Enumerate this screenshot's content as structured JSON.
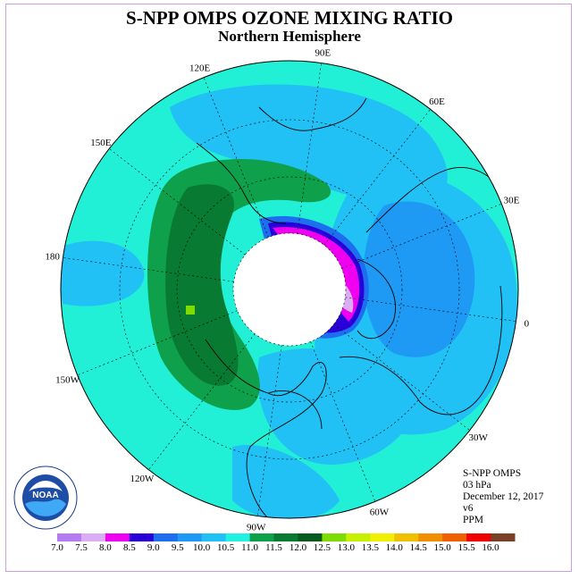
{
  "title": "S-NPP OMPS OZONE MIXING RATIO",
  "subtitle": "Northern Hemisphere",
  "longitude_labels": [
    {
      "text": "90E",
      "lon": 90
    },
    {
      "text": "60E",
      "lon": 60
    },
    {
      "text": "30E",
      "lon": 30
    },
    {
      "text": "0",
      "lon": 0
    },
    {
      "text": "30W",
      "lon": -30
    },
    {
      "text": "60W",
      "lon": -60
    },
    {
      "text": "90W",
      "lon": -90
    },
    {
      "text": "120W",
      "lon": -120
    },
    {
      "text": "150W",
      "lon": -150
    },
    {
      "text": "180",
      "lon": 180
    },
    {
      "text": "150E",
      "lon": 150
    },
    {
      "text": "120E",
      "lon": 120
    }
  ],
  "info": {
    "instrument": "S-NPP OMPS",
    "level": "03 hPa",
    "date": "December 12, 2017",
    "version": "v6",
    "units": "PPM"
  },
  "colorbar": {
    "labels": [
      "7.0",
      "7.5",
      "8.0",
      "8.5",
      "9.0",
      "9.5",
      "10.0",
      "10.5",
      "11.0",
      "11.5",
      "12.0",
      "12.5",
      "13.0",
      "13.5",
      "14.0",
      "14.5",
      "15.0",
      "15.5",
      "16.0"
    ],
    "colors": [
      "#b57bf0",
      "#d9aef5",
      "#f000f0",
      "#2a00d8",
      "#1e6ef0",
      "#1e9af5",
      "#21c0f5",
      "#22f0e0",
      "#0ea04a",
      "#087a32",
      "#085a1e",
      "#7edc00",
      "#c6f000",
      "#f0f000",
      "#f0c000",
      "#f09000",
      "#f06000",
      "#f00000",
      "#7a4028"
    ]
  },
  "legend_meta": {
    "categories": 18
  },
  "colors": {
    "background_field": "#22f0d6",
    "blue_low": "#1e9af5",
    "blue_mid": "#1e7ef0",
    "dark_green": "#0a8a3c",
    "darker_green": "#07602a",
    "magenta": "#f000f0",
    "polar_night": "#ffffff"
  },
  "logo": {
    "text": "NOAA",
    "ring_text": "NATIONAL OCEANIC AND ATMOSPHERIC ADMINISTRATION · U.S. DEPARTMENT OF COMMERCE"
  }
}
